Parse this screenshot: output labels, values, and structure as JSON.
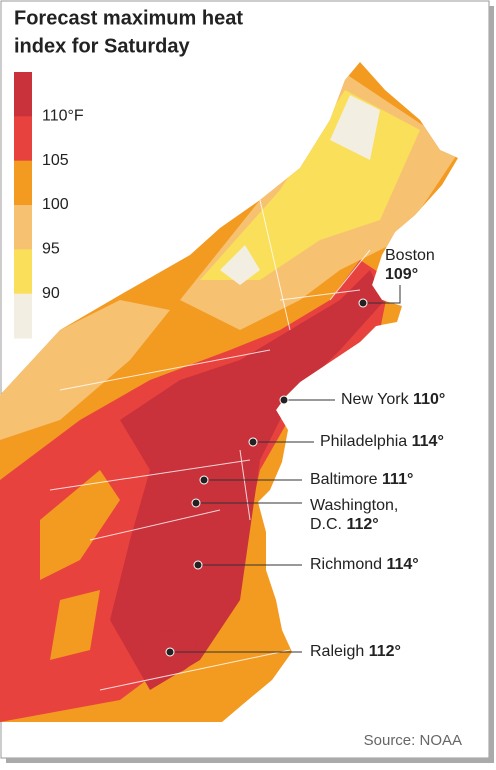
{
  "title_lines": [
    "Forecast maximum heat",
    "index for Saturday"
  ],
  "legend": {
    "colors": [
      "#c9313b",
      "#e8423f",
      "#f39a21",
      "#f7c172",
      "#f9df5a",
      "#f3eee2"
    ],
    "labels": [
      "110°F",
      "105",
      "100",
      "95",
      "90"
    ]
  },
  "cities": [
    {
      "name": "Boston",
      "temp": "109°"
    },
    {
      "name": "New York",
      "temp": "110°"
    },
    {
      "name": "Philadelphia",
      "temp": "114°"
    },
    {
      "name": "Baltimore",
      "temp": "111°"
    },
    {
      "name": "Washington,",
      "name2": "D.C.",
      "temp": "112°"
    },
    {
      "name": "Richmond",
      "temp": "114°"
    },
    {
      "name": "Raleigh",
      "temp": "112°"
    }
  ],
  "source": "Source: NOAA"
}
